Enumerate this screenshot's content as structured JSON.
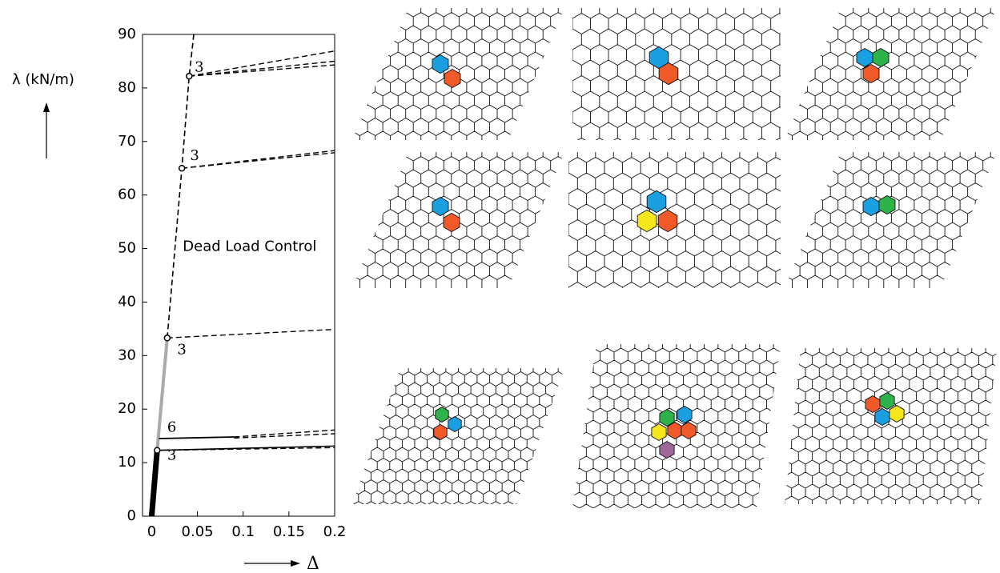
{
  "chart_data": {
    "type": "line",
    "y_label": "λ (kN/m)",
    "x_label": "Δ",
    "xlim": [
      -0.01,
      0.2
    ],
    "ylim": [
      0,
      90
    ],
    "xticks": [
      0,
      0.05,
      0.1,
      0.15,
      0.2
    ],
    "yticks": [
      0,
      10,
      20,
      30,
      40,
      50,
      60,
      70,
      80,
      90
    ],
    "series": [
      {
        "x": [
          0,
          0.006
        ],
        "values": [
          0,
          12.3
        ],
        "color": "#000000",
        "width": 7,
        "dash": false
      },
      {
        "x": [
          0.006,
          0.017
        ],
        "values": [
          12.3,
          33.3
        ],
        "color": "#aaaaaa",
        "width": 4,
        "dash": false
      },
      {
        "x": [
          0.017,
          0.033,
          0.041,
          0.046
        ],
        "values": [
          33.3,
          65,
          82.2,
          90
        ],
        "color": "#000000",
        "width": 1.6,
        "dash": true
      },
      {
        "x": [
          0.006,
          0.2
        ],
        "values": [
          12.3,
          13.1
        ],
        "color": "#000000",
        "width": 1.6,
        "dash": false
      },
      {
        "x": [
          0.006,
          0.2
        ],
        "values": [
          12.3,
          12.8
        ],
        "color": "#000000",
        "width": 1.4,
        "dash": true
      },
      {
        "x": [
          0.008,
          0.09
        ],
        "values": [
          14.5,
          14.8
        ],
        "color": "#000000",
        "width": 1.8,
        "dash": false
      },
      {
        "x": [
          0.09,
          0.2
        ],
        "values": [
          14.8,
          16.1
        ],
        "color": "#000000",
        "width": 1.4,
        "dash": true
      },
      {
        "x": [
          0.09,
          0.2
        ],
        "values": [
          14.6,
          15.4
        ],
        "color": "#000000",
        "width": 1.4,
        "dash": true
      },
      {
        "x": [
          0.017,
          0.2
        ],
        "values": [
          33.3,
          34.9
        ],
        "color": "#000000",
        "width": 1.4,
        "dash": true
      },
      {
        "x": [
          0.033,
          0.2
        ],
        "values": [
          65,
          68.3
        ],
        "color": "#000000",
        "width": 1.4,
        "dash": true
      },
      {
        "x": [
          0.033,
          0.2
        ],
        "values": [
          65,
          67.9
        ],
        "color": "#000000",
        "width": 1.4,
        "dash": true
      },
      {
        "x": [
          0.041,
          0.2
        ],
        "values": [
          82.2,
          86.9
        ],
        "color": "#000000",
        "width": 1.4,
        "dash": true
      },
      {
        "x": [
          0.041,
          0.2
        ],
        "values": [
          82.2,
          85
        ],
        "color": "#000000",
        "width": 1.4,
        "dash": true
      },
      {
        "x": [
          0.041,
          0.2
        ],
        "values": [
          82.2,
          84.3
        ],
        "color": "#000000",
        "width": 1.4,
        "dash": true
      }
    ],
    "points": {
      "x": [
        0.006,
        0.017,
        0.033,
        0.041
      ],
      "values": [
        12.3,
        33.3,
        65,
        82.2
      ]
    },
    "annotations": [
      {
        "text": "3",
        "x": 0.047,
        "y": 83.8
      },
      {
        "text": "3",
        "x": 0.042,
        "y": 67.3
      },
      {
        "text": "Dead Load Control",
        "x": 0.034,
        "y": 50.3
      },
      {
        "text": "3",
        "x": 0.028,
        "y": 31
      },
      {
        "text": "6",
        "x": 0.017,
        "y": 16.5
      },
      {
        "text": "3",
        "x": 0.017,
        "y": 11.3
      }
    ]
  }
}
